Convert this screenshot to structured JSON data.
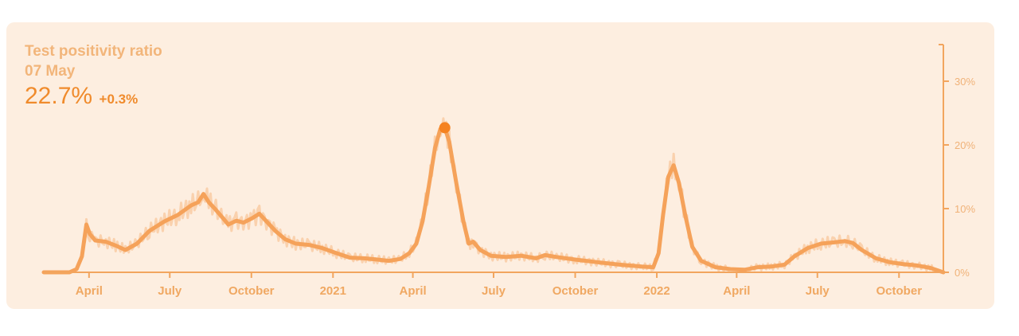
{
  "colors": {
    "card_bg": "#fdeee0",
    "line": "#f5a25a",
    "raw_line": "#f9c9a0",
    "axis": "#f2a55e",
    "marker": "#f58220"
  },
  "readout": {
    "title": "Test positivity ratio",
    "date": "07 May",
    "value": "22.7%",
    "change": "+0.3%"
  },
  "chart_data": {
    "type": "line",
    "title": "Test positivity ratio",
    "xlabel": "",
    "ylabel": "",
    "x_ticks": [
      {
        "label": "April",
        "date": "2020-04-01"
      },
      {
        "label": "July",
        "date": "2020-07-01"
      },
      {
        "label": "October",
        "date": "2020-10-01"
      },
      {
        "label": "2021",
        "date": "2021-01-01"
      },
      {
        "label": "April",
        "date": "2021-04-01"
      },
      {
        "label": "July",
        "date": "2021-07-01"
      },
      {
        "label": "October",
        "date": "2021-10-01"
      },
      {
        "label": "2022",
        "date": "2022-01-01"
      },
      {
        "label": "April",
        "date": "2022-04-01"
      },
      {
        "label": "July",
        "date": "2022-07-01"
      },
      {
        "label": "October",
        "date": "2022-10-01"
      }
    ],
    "y_ticks": [
      {
        "label": "0%",
        "value": 0
      },
      {
        "label": "10%",
        "value": 10
      },
      {
        "label": "20%",
        "value": 20
      },
      {
        "label": "30%",
        "value": 30
      }
    ],
    "xlim": [
      "2020-02-10",
      "2022-11-20"
    ],
    "ylim": [
      0,
      36
    ],
    "y_axis_position": "right",
    "grid": false,
    "highlight": {
      "date": "2021-05-07",
      "value": 22.7
    },
    "series": [
      {
        "points": [
          [
            "2020-02-10",
            0
          ],
          [
            "2020-03-10",
            0
          ],
          [
            "2020-03-18",
            0.5
          ],
          [
            "2020-03-24",
            2.5
          ],
          [
            "2020-03-29",
            7.5
          ],
          [
            "2020-04-02",
            6.0
          ],
          [
            "2020-04-08",
            5.0
          ],
          [
            "2020-04-20",
            4.8
          ],
          [
            "2020-05-01",
            4.2
          ],
          [
            "2020-05-12",
            3.5
          ],
          [
            "2020-05-25",
            4.5
          ],
          [
            "2020-06-08",
            6.5
          ],
          [
            "2020-06-25",
            8.0
          ],
          [
            "2020-07-10",
            9.0
          ],
          [
            "2020-07-25",
            10.5
          ],
          [
            "2020-08-02",
            11.0
          ],
          [
            "2020-08-08",
            12.3
          ],
          [
            "2020-08-14",
            11.0
          ],
          [
            "2020-08-22",
            9.8
          ],
          [
            "2020-08-30",
            8.5
          ],
          [
            "2020-09-05",
            7.5
          ],
          [
            "2020-09-14",
            8.1
          ],
          [
            "2020-09-22",
            7.8
          ],
          [
            "2020-10-02",
            8.5
          ],
          [
            "2020-10-10",
            9.2
          ],
          [
            "2020-10-18",
            8.0
          ],
          [
            "2020-10-28",
            6.5
          ],
          [
            "2020-11-08",
            5.2
          ],
          [
            "2020-11-20",
            4.5
          ],
          [
            "2020-12-05",
            4.3
          ],
          [
            "2020-12-20",
            3.8
          ],
          [
            "2021-01-05",
            3.0
          ],
          [
            "2021-01-20",
            2.3
          ],
          [
            "2021-02-05",
            2.2
          ],
          [
            "2021-02-20",
            2.0
          ],
          [
            "2021-03-05",
            1.8
          ],
          [
            "2021-03-18",
            2.1
          ],
          [
            "2021-03-28",
            3.0
          ],
          [
            "2021-04-05",
            4.5
          ],
          [
            "2021-04-12",
            8.0
          ],
          [
            "2021-04-19",
            13.5
          ],
          [
            "2021-04-26",
            19.5
          ],
          [
            "2021-05-02",
            22.5
          ],
          [
            "2021-05-07",
            22.7
          ],
          [
            "2021-05-12",
            20.5
          ],
          [
            "2021-05-20",
            14.0
          ],
          [
            "2021-05-28",
            8.0
          ],
          [
            "2021-06-03",
            4.5
          ],
          [
            "2021-06-08",
            4.8
          ],
          [
            "2021-06-16",
            3.5
          ],
          [
            "2021-06-28",
            2.6
          ],
          [
            "2021-07-15",
            2.4
          ],
          [
            "2021-08-01",
            2.6
          ],
          [
            "2021-08-18",
            2.2
          ],
          [
            "2021-08-28",
            2.7
          ],
          [
            "2021-09-10",
            2.4
          ],
          [
            "2021-10-01",
            2.0
          ],
          [
            "2021-10-25",
            1.6
          ],
          [
            "2021-11-20",
            1.2
          ],
          [
            "2021-12-15",
            0.9
          ],
          [
            "2021-12-28",
            0.8
          ],
          [
            "2022-01-03",
            3.0
          ],
          [
            "2022-01-08",
            9.0
          ],
          [
            "2022-01-14",
            15.0
          ],
          [
            "2022-01-20",
            16.8
          ],
          [
            "2022-01-26",
            14.0
          ],
          [
            "2022-02-02",
            9.0
          ],
          [
            "2022-02-10",
            4.0
          ],
          [
            "2022-02-20",
            1.8
          ],
          [
            "2022-03-08",
            0.8
          ],
          [
            "2022-03-25",
            0.5
          ],
          [
            "2022-04-10",
            0.4
          ],
          [
            "2022-04-25",
            0.8
          ],
          [
            "2022-05-10",
            0.9
          ],
          [
            "2022-05-25",
            1.2
          ],
          [
            "2022-06-05",
            2.5
          ],
          [
            "2022-06-20",
            3.8
          ],
          [
            "2022-07-05",
            4.5
          ],
          [
            "2022-07-20",
            4.7
          ],
          [
            "2022-08-01",
            4.9
          ],
          [
            "2022-08-10",
            4.6
          ],
          [
            "2022-08-20",
            3.5
          ],
          [
            "2022-09-05",
            2.2
          ],
          [
            "2022-09-20",
            1.6
          ],
          [
            "2022-10-05",
            1.3
          ],
          [
            "2022-10-20",
            1.1
          ],
          [
            "2022-11-05",
            0.7
          ],
          [
            "2022-11-20",
            0.0
          ]
        ]
      }
    ]
  }
}
